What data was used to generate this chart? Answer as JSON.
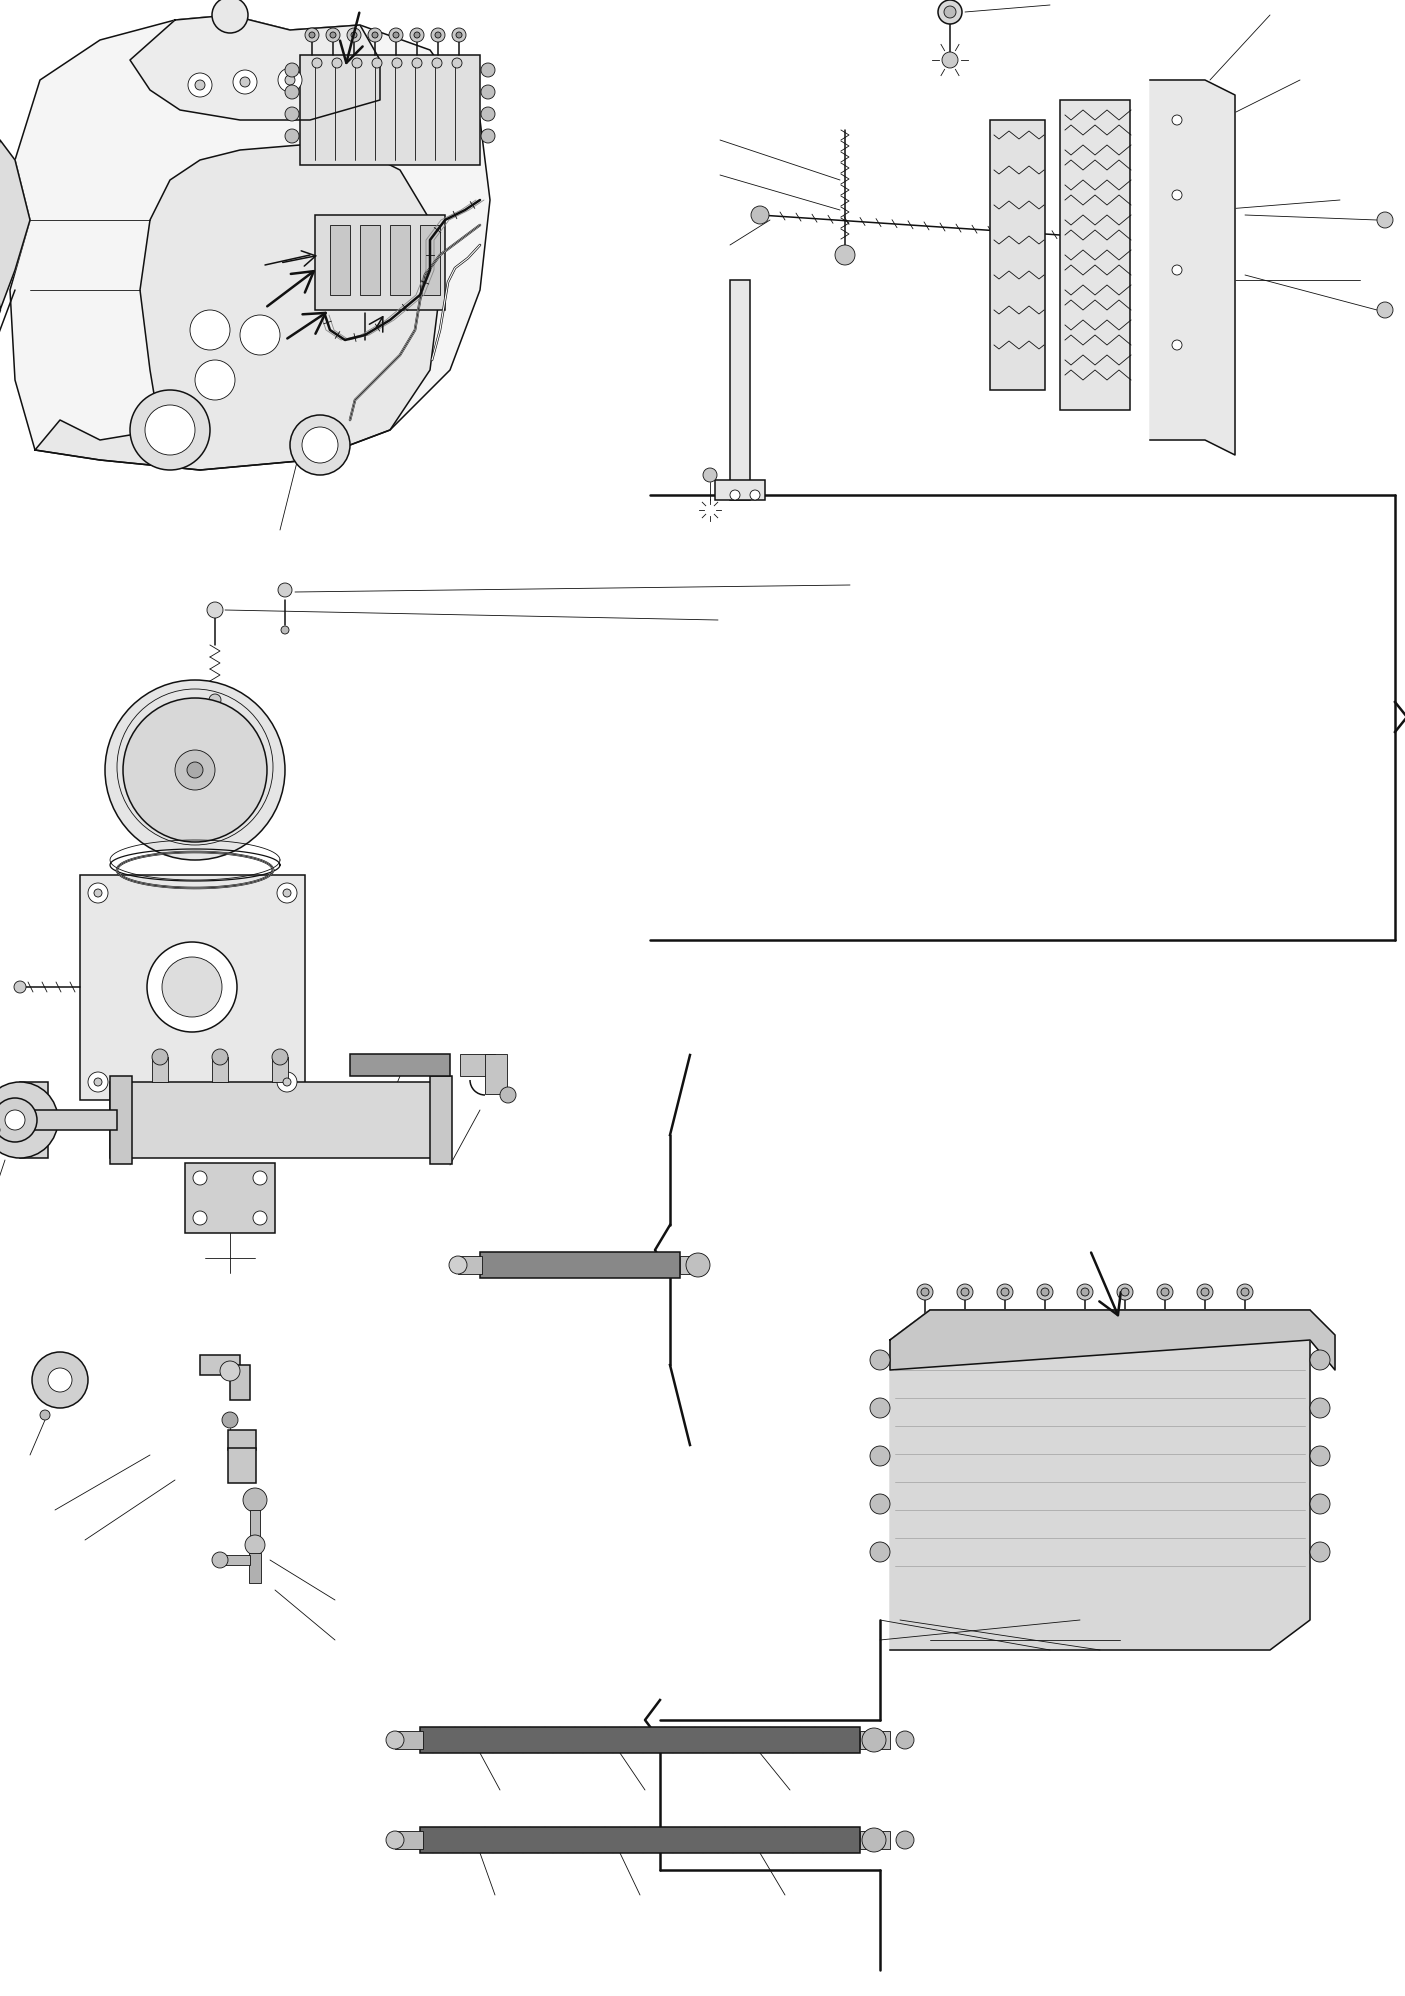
{
  "bg_color": "#ffffff",
  "lc": "#111111",
  "lc_gray": "#555555",
  "fig_width": 14.05,
  "fig_height": 19.96,
  "dpi": 100,
  "lw_thin": 0.6,
  "lw_med": 1.1,
  "lw_thick": 1.8,
  "lw_heavy": 2.5
}
